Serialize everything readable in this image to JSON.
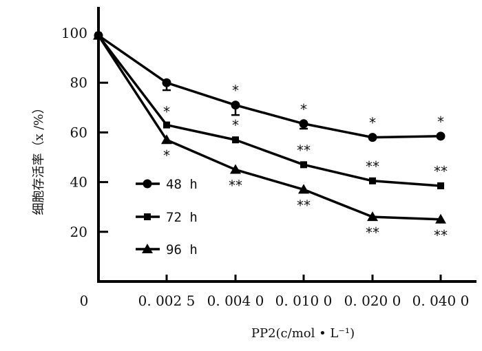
{
  "chart_data": {
    "type": "line",
    "title": "",
    "xlabel": "PP2(c/mol • L⁻¹)",
    "ylabel": "细胞存活率（x /%）",
    "x_categories": [
      "0",
      "0. 002 5",
      "0. 004 0",
      "0. 010 0",
      "0. 020 0",
      "0. 040 0"
    ],
    "y_ticks": [
      "20",
      "40",
      "60",
      "80",
      "100"
    ],
    "y_zero_label": "0",
    "ylim": [
      0,
      100
    ],
    "grid": false,
    "legend_position": "center-left",
    "series": [
      {
        "name": "48 h",
        "marker": "circle",
        "values": [
          99,
          80,
          71,
          63.5,
          58,
          58.5
        ],
        "annotations": [
          "",
          "",
          "*",
          "*",
          "*",
          "*"
        ]
      },
      {
        "name": "72 h",
        "marker": "square",
        "values": [
          99,
          63,
          57,
          47,
          40.5,
          38.5
        ],
        "annotations": [
          "",
          "*",
          "*",
          "**",
          "**",
          "**"
        ]
      },
      {
        "name": "96 h",
        "marker": "triangle",
        "values": [
          99,
          57,
          45,
          37,
          26,
          25
        ],
        "annotations": [
          "",
          "*",
          "**",
          "**",
          "**",
          "**"
        ]
      }
    ]
  }
}
